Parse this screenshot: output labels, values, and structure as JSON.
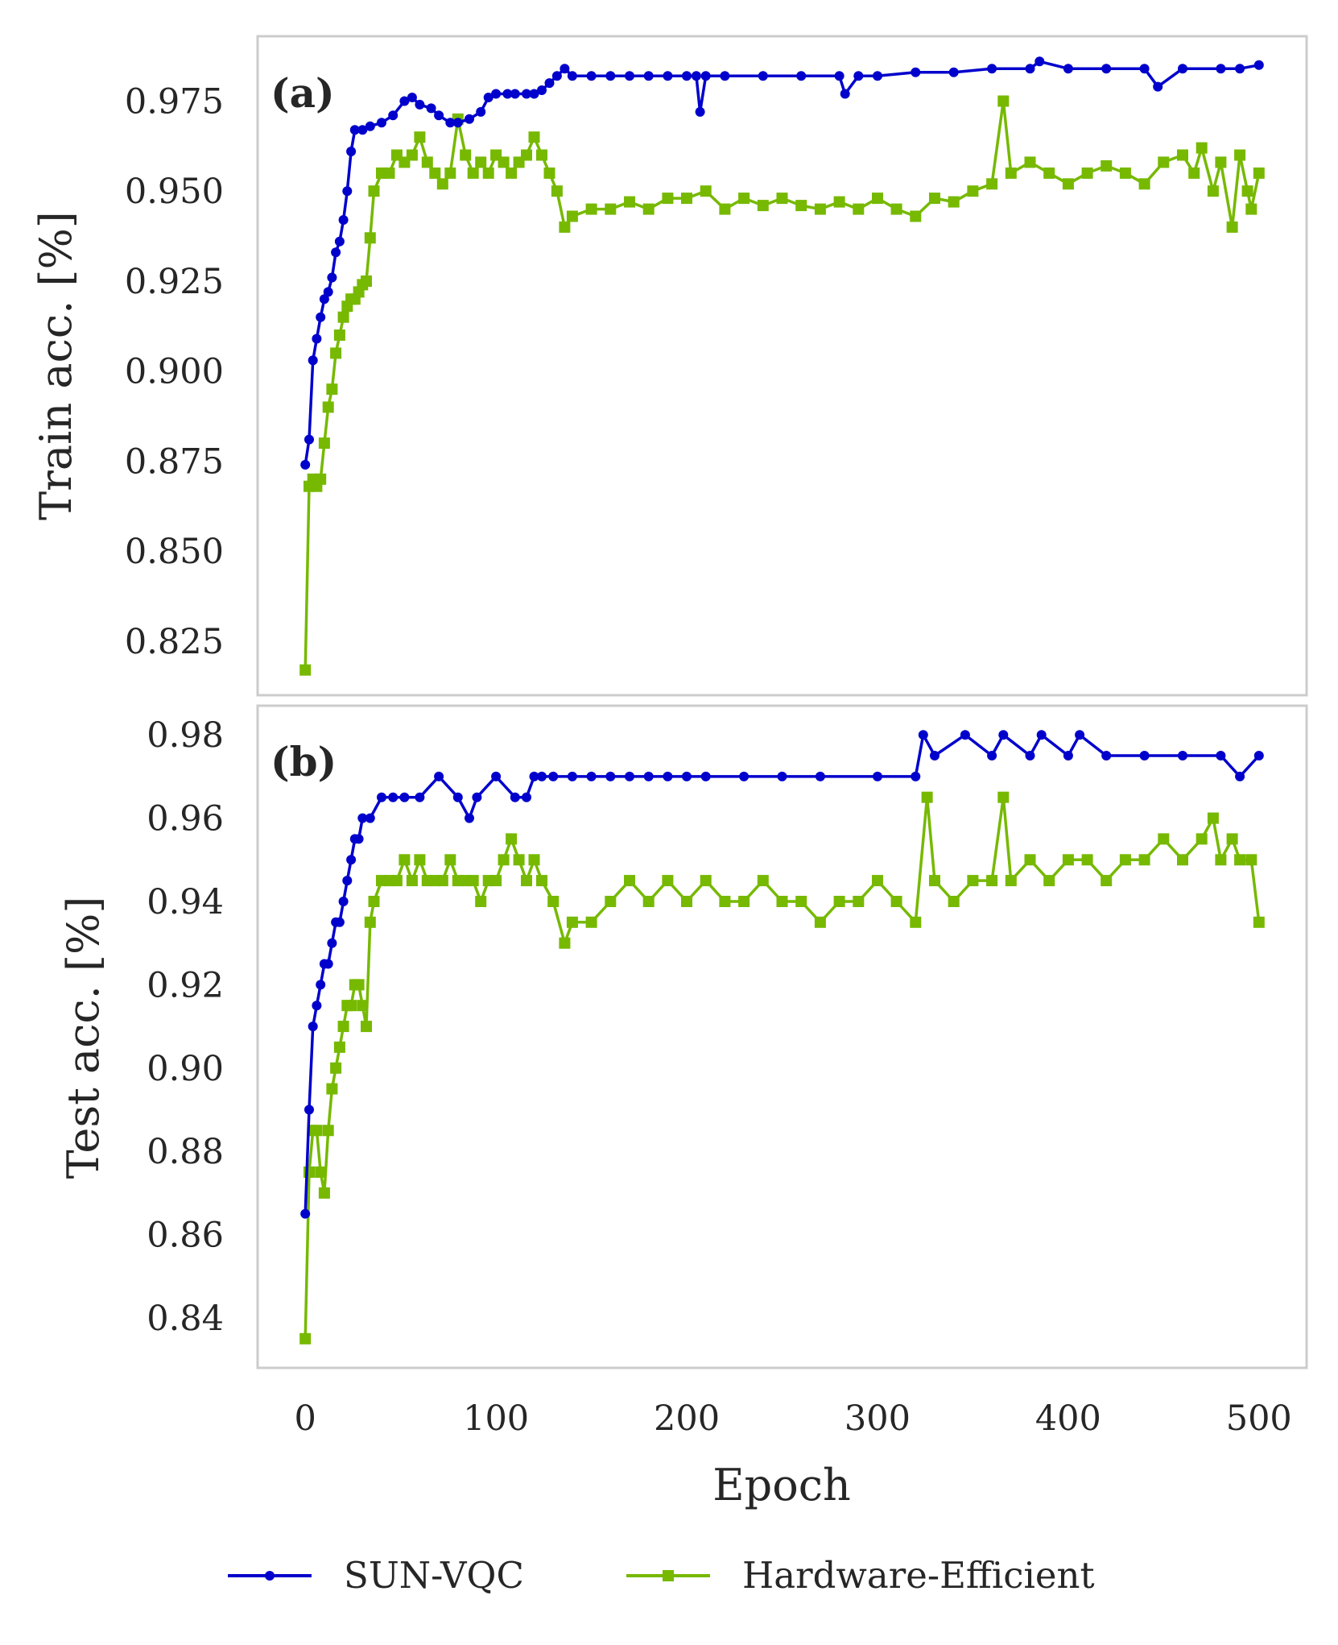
{
  "chart_data": [
    {
      "type": "line",
      "panel_label": "(a)",
      "ylabel": "Train acc. [%]",
      "xlim": [
        -25,
        525
      ],
      "ylim": [
        0.81,
        0.993
      ],
      "yticks": [
        "0.825",
        "0.850",
        "0.875",
        "0.900",
        "0.925",
        "0.950",
        "0.975"
      ],
      "series": [
        {
          "name": "SUN-VQC",
          "color": "#0000cc",
          "marker": "circle",
          "x": [
            0,
            2,
            4,
            6,
            8,
            10,
            12,
            14,
            16,
            18,
            20,
            22,
            24,
            26,
            30,
            34,
            40,
            46,
            52,
            56,
            60,
            66,
            70,
            76,
            80,
            86,
            92,
            96,
            100,
            106,
            110,
            116,
            120,
            124,
            128,
            132,
            136,
            140,
            150,
            160,
            170,
            180,
            190,
            200,
            205,
            207,
            210,
            220,
            240,
            260,
            280,
            283,
            290,
            300,
            320,
            340,
            360,
            380,
            385,
            400,
            420,
            440,
            447,
            460,
            480,
            490,
            500
          ],
          "y": [
            0.874,
            0.881,
            0.903,
            0.909,
            0.915,
            0.92,
            0.922,
            0.926,
            0.933,
            0.936,
            0.942,
            0.95,
            0.961,
            0.967,
            0.967,
            0.968,
            0.969,
            0.971,
            0.975,
            0.976,
            0.974,
            0.973,
            0.971,
            0.969,
            0.969,
            0.97,
            0.972,
            0.976,
            0.977,
            0.977,
            0.977,
            0.977,
            0.977,
            0.978,
            0.98,
            0.982,
            0.984,
            0.982,
            0.982,
            0.982,
            0.982,
            0.982,
            0.982,
            0.982,
            0.982,
            0.972,
            0.982,
            0.982,
            0.982,
            0.982,
            0.982,
            0.977,
            0.982,
            0.982,
            0.983,
            0.983,
            0.984,
            0.984,
            0.986,
            0.984,
            0.984,
            0.984,
            0.979,
            0.984,
            0.984,
            0.984,
            0.985
          ]
        },
        {
          "name": "Hardware-Efficient",
          "color": "#76b900",
          "marker": "square",
          "x": [
            0,
            2,
            4,
            6,
            8,
            10,
            12,
            14,
            16,
            18,
            20,
            22,
            24,
            26,
            28,
            30,
            32,
            34,
            36,
            40,
            44,
            48,
            52,
            56,
            60,
            64,
            68,
            72,
            76,
            80,
            84,
            88,
            92,
            96,
            100,
            104,
            108,
            112,
            116,
            120,
            124,
            128,
            132,
            136,
            140,
            150,
            160,
            170,
            180,
            190,
            200,
            210,
            220,
            230,
            240,
            250,
            260,
            270,
            280,
            290,
            300,
            310,
            320,
            330,
            340,
            350,
            360,
            366,
            370,
            380,
            390,
            400,
            410,
            420,
            430,
            440,
            450,
            460,
            466,
            470,
            476,
            480,
            486,
            490,
            494,
            496,
            500
          ],
          "y": [
            0.817,
            0.868,
            0.87,
            0.868,
            0.87,
            0.88,
            0.89,
            0.895,
            0.905,
            0.91,
            0.915,
            0.918,
            0.92,
            0.92,
            0.922,
            0.924,
            0.925,
            0.937,
            0.95,
            0.955,
            0.955,
            0.96,
            0.958,
            0.96,
            0.965,
            0.958,
            0.955,
            0.952,
            0.955,
            0.97,
            0.96,
            0.955,
            0.958,
            0.955,
            0.96,
            0.958,
            0.955,
            0.958,
            0.96,
            0.965,
            0.96,
            0.955,
            0.95,
            0.94,
            0.943,
            0.945,
            0.945,
            0.947,
            0.945,
            0.948,
            0.948,
            0.95,
            0.945,
            0.948,
            0.946,
            0.948,
            0.946,
            0.945,
            0.947,
            0.945,
            0.948,
            0.945,
            0.943,
            0.948,
            0.947,
            0.95,
            0.952,
            0.975,
            0.955,
            0.958,
            0.955,
            0.952,
            0.955,
            0.957,
            0.955,
            0.952,
            0.958,
            0.96,
            0.955,
            0.962,
            0.95,
            0.958,
            0.94,
            0.96,
            0.95,
            0.945,
            0.955
          ]
        }
      ]
    },
    {
      "type": "line",
      "panel_label": "(b)",
      "ylabel": "Test acc. [%]",
      "xlabel": "Epoch",
      "xlim": [
        -25,
        525
      ],
      "ylim": [
        0.828,
        0.987
      ],
      "xticks": [
        "0",
        "100",
        "200",
        "300",
        "400",
        "500"
      ],
      "yticks": [
        "0.84",
        "0.86",
        "0.88",
        "0.90",
        "0.92",
        "0.94",
        "0.96",
        "0.98"
      ],
      "series": [
        {
          "name": "SUN-VQC",
          "color": "#0000cc",
          "marker": "circle",
          "x": [
            0,
            2,
            4,
            6,
            8,
            10,
            12,
            14,
            16,
            18,
            20,
            22,
            24,
            26,
            28,
            30,
            34,
            40,
            46,
            52,
            60,
            70,
            80,
            86,
            90,
            100,
            110,
            116,
            120,
            124,
            130,
            140,
            150,
            160,
            170,
            180,
            190,
            200,
            210,
            230,
            250,
            270,
            300,
            320,
            324,
            330,
            346,
            360,
            366,
            380,
            386,
            400,
            406,
            420,
            440,
            460,
            480,
            490,
            500
          ],
          "y": [
            0.865,
            0.89,
            0.91,
            0.915,
            0.92,
            0.925,
            0.925,
            0.93,
            0.935,
            0.935,
            0.94,
            0.945,
            0.95,
            0.955,
            0.955,
            0.96,
            0.96,
            0.965,
            0.965,
            0.965,
            0.965,
            0.97,
            0.965,
            0.96,
            0.965,
            0.97,
            0.965,
            0.965,
            0.97,
            0.97,
            0.97,
            0.97,
            0.97,
            0.97,
            0.97,
            0.97,
            0.97,
            0.97,
            0.97,
            0.97,
            0.97,
            0.97,
            0.97,
            0.97,
            0.98,
            0.975,
            0.98,
            0.975,
            0.98,
            0.975,
            0.98,
            0.975,
            0.98,
            0.975,
            0.975,
            0.975,
            0.975,
            0.97,
            0.975
          ]
        },
        {
          "name": "Hardware-Efficient",
          "color": "#76b900",
          "marker": "square",
          "x": [
            0,
            2,
            4,
            6,
            8,
            10,
            12,
            14,
            16,
            18,
            20,
            22,
            24,
            26,
            28,
            30,
            32,
            34,
            36,
            40,
            44,
            48,
            52,
            56,
            60,
            64,
            68,
            72,
            76,
            80,
            84,
            88,
            92,
            96,
            100,
            104,
            108,
            112,
            116,
            120,
            124,
            130,
            136,
            140,
            150,
            160,
            170,
            180,
            190,
            200,
            210,
            220,
            230,
            240,
            250,
            260,
            270,
            280,
            290,
            300,
            310,
            320,
            326,
            330,
            340,
            350,
            360,
            366,
            370,
            380,
            390,
            400,
            410,
            420,
            430,
            440,
            450,
            460,
            470,
            476,
            480,
            486,
            490,
            496,
            500
          ],
          "y": [
            0.835,
            0.875,
            0.885,
            0.885,
            0.875,
            0.87,
            0.885,
            0.895,
            0.9,
            0.905,
            0.91,
            0.915,
            0.915,
            0.92,
            0.92,
            0.915,
            0.91,
            0.935,
            0.94,
            0.945,
            0.945,
            0.945,
            0.95,
            0.945,
            0.95,
            0.945,
            0.945,
            0.945,
            0.95,
            0.945,
            0.945,
            0.945,
            0.94,
            0.945,
            0.945,
            0.95,
            0.955,
            0.95,
            0.945,
            0.95,
            0.945,
            0.94,
            0.93,
            0.935,
            0.935,
            0.94,
            0.945,
            0.94,
            0.945,
            0.94,
            0.945,
            0.94,
            0.94,
            0.945,
            0.94,
            0.94,
            0.935,
            0.94,
            0.94,
            0.945,
            0.94,
            0.935,
            0.965,
            0.945,
            0.94,
            0.945,
            0.945,
            0.965,
            0.945,
            0.95,
            0.945,
            0.95,
            0.95,
            0.945,
            0.95,
            0.95,
            0.955,
            0.95,
            0.955,
            0.96,
            0.95,
            0.955,
            0.95,
            0.95,
            0.935
          ]
        }
      ]
    }
  ],
  "legend": {
    "placement": "bottom-center",
    "items": [
      "SUN-VQC",
      "Hardware-Efficient"
    ]
  }
}
